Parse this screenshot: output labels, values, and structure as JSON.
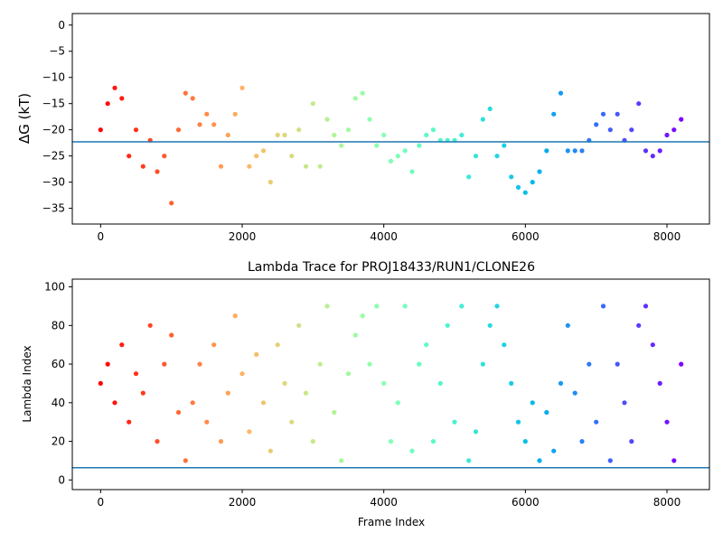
{
  "chart_data": [
    {
      "type": "scatter",
      "title": "",
      "xlabel": "",
      "ylabel": "ΔG (kT)",
      "xlim": [
        -400,
        8600
      ],
      "ylim": [
        -38,
        2.2
      ],
      "xticks": [
        0,
        2000,
        4000,
        6000,
        8000
      ],
      "xtick_labels": [
        "0",
        "2000",
        "4000",
        "6000",
        "8000"
      ],
      "yticks": [
        0,
        -5,
        -10,
        -15,
        -20,
        -25,
        -30,
        -35
      ],
      "ytick_labels": [
        "0",
        "−5",
        "−10",
        "−15",
        "−20",
        "−25",
        "−30",
        "−35"
      ],
      "hline": {
        "y": -22.3,
        "color": "#1f77b4"
      },
      "colormap": "rainbow (reversed: red at frame 0, violet at frame 8200)",
      "series": [
        {
          "x": [
            0,
            100,
            200,
            300,
            400,
            500,
            600,
            700,
            800,
            900,
            1000,
            1100,
            1200,
            1300,
            1400,
            1500,
            1600,
            1700,
            1800,
            1900,
            2000,
            2100,
            2200,
            2300,
            2400,
            2500,
            2600,
            2700,
            2800,
            2900,
            3000,
            3100,
            3200,
            3300,
            3400,
            3500,
            3600,
            3700,
            3800,
            3900,
            4000,
            4100,
            4200,
            4300,
            4400,
            4500,
            4600,
            4700,
            4800,
            4900,
            5000,
            5100,
            5200,
            5300,
            5400,
            5500,
            5600,
            5700,
            5800,
            5900,
            6000,
            6100,
            6200,
            6300,
            6400,
            6500,
            6600,
            6700,
            6800,
            6900,
            7000,
            7100,
            7200,
            7300,
            7400,
            7500,
            7600,
            7700,
            7800,
            7900,
            8000,
            8100,
            8200
          ],
          "y": [
            -20,
            -15,
            -12,
            -14,
            -25,
            -20,
            -27,
            -22,
            -28,
            -25,
            -34,
            -20,
            -13,
            -14,
            -19,
            -17,
            -19,
            -27,
            -21,
            -17,
            -12,
            -27,
            -25,
            -24,
            -30,
            -21,
            -21,
            -25,
            -20,
            -27,
            -15,
            -27,
            -18,
            -21,
            -23,
            -20,
            -14,
            -13,
            -18,
            -23,
            -21,
            -26,
            -25,
            -24,
            -28,
            -23,
            -21,
            -20,
            -22,
            -22,
            -22,
            -21,
            -29,
            -25,
            -18,
            -16,
            -25,
            -23,
            -29,
            -31,
            -32,
            -30,
            -28,
            -24,
            -17,
            -13,
            -24,
            -24,
            -24,
            -22,
            -19,
            -17,
            -20,
            -17,
            -22,
            -20,
            -15,
            -24,
            -25,
            -24,
            -21,
            -20,
            -18
          ]
        }
      ]
    },
    {
      "type": "scatter",
      "title": "Lambda Trace for PROJ18433/RUN1/CLONE26",
      "xlabel": "Frame Index",
      "ylabel": "Lambda Index",
      "xlim": [
        -400,
        8600
      ],
      "ylim": [
        -5,
        104
      ],
      "xticks": [
        0,
        2000,
        4000,
        6000,
        8000
      ],
      "xtick_labels": [
        "0",
        "2000",
        "4000",
        "6000",
        "8000"
      ],
      "yticks": [
        0,
        20,
        40,
        60,
        80,
        100
      ],
      "ytick_labels": [
        "0",
        "20",
        "40",
        "60",
        "80",
        "100"
      ],
      "hline": {
        "y": 6.3,
        "color": "#1f77b4"
      },
      "colormap": "rainbow (reversed: red at frame 0, violet at frame 8200)",
      "series": [
        {
          "x": [
            0,
            100,
            200,
            300,
            400,
            500,
            600,
            700,
            800,
            900,
            1000,
            1100,
            1200,
            1300,
            1400,
            1500,
            1600,
            1700,
            1800,
            1900,
            2000,
            2100,
            2200,
            2300,
            2400,
            2500,
            2600,
            2700,
            2800,
            2900,
            3000,
            3100,
            3200,
            3300,
            3400,
            3500,
            3600,
            3700,
            3800,
            3900,
            4000,
            4100,
            4200,
            4300,
            4400,
            4500,
            4600,
            4700,
            4800,
            4900,
            5000,
            5100,
            5200,
            5300,
            5400,
            5500,
            5600,
            5700,
            5800,
            5900,
            6000,
            6100,
            6200,
            6300,
            6400,
            6500,
            6600,
            6700,
            6800,
            6900,
            7000,
            7100,
            7200,
            7300,
            7400,
            7500,
            7600,
            7700,
            7800,
            7900,
            8000,
            8100,
            8200
          ],
          "y": [
            50,
            60,
            40,
            70,
            30,
            55,
            45,
            80,
            20,
            60,
            75,
            35,
            10,
            40,
            60,
            30,
            70,
            20,
            45,
            85,
            55,
            25,
            65,
            40,
            15,
            70,
            50,
            30,
            80,
            45,
            20,
            60,
            90,
            35,
            10,
            55,
            75,
            85,
            60,
            90,
            50,
            20,
            40,
            90,
            15,
            60,
            70,
            20,
            50,
            80,
            30,
            90,
            10,
            25,
            60,
            80,
            90,
            70,
            50,
            30,
            20,
            40,
            10,
            35,
            15,
            50,
            80,
            45,
            20,
            60,
            30,
            90,
            10,
            60,
            40,
            20,
            80,
            90,
            70,
            50,
            30,
            10,
            60
          ]
        }
      ]
    }
  ]
}
